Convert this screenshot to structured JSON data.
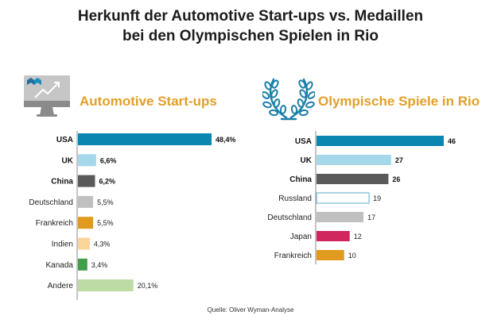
{
  "title_line1": "Herkunft der Automotive Start-ups vs. Medaillen",
  "title_line2": "bei den Olympischen Spielen in Rio",
  "source": "Quelle: Oliver Wyman-Analyse",
  "icons": {
    "left": "monitor-trend-icon",
    "right": "laurel-wreath-icon"
  },
  "colors": {
    "heading": "#e0a028",
    "USA": "#0a86b0",
    "UK": "#a6d8eb",
    "China": "#5a5a5a",
    "Russland_outline": "#7ab8d4",
    "Deutschland": "#c0c0c0",
    "Frankreich": "#e09a20",
    "Indien": "#fbd59a",
    "Kanada": "#3f9e48",
    "Andere": "#bcdca4",
    "Japan": "#d0285e"
  },
  "chart_data": [
    {
      "type": "bar",
      "orientation": "horizontal",
      "title": "Automotive Start-ups",
      "unit": "%",
      "categories": [
        "USA",
        "UK",
        "China",
        "Deutschland",
        "Frankreich",
        "Indien",
        "Kanada",
        "Andere"
      ],
      "values": [
        48.4,
        6.6,
        6.2,
        5.5,
        5.5,
        4.3,
        3.4,
        20.1
      ],
      "value_labels": [
        "48,4%",
        "6,6%",
        "6,2%",
        "5,5%",
        "5,5%",
        "4,3%",
        "3,4%",
        "20,1%"
      ],
      "bold": [
        true,
        true,
        true,
        false,
        false,
        false,
        false,
        false
      ],
      "colors": [
        "#0a86b0",
        "#a6d8eb",
        "#5a5a5a",
        "#c0c0c0",
        "#e09a20",
        "#fbd59a",
        "#3f9e48",
        "#bcdca4"
      ],
      "outline": [
        false,
        false,
        false,
        false,
        false,
        false,
        false,
        false
      ],
      "xlim": [
        0,
        48.4
      ],
      "grid": false,
      "legend": "none"
    },
    {
      "type": "bar",
      "orientation": "horizontal",
      "title": "Olympische Spiele in Rio",
      "unit": "Medaillen",
      "categories": [
        "USA",
        "UK",
        "China",
        "Russland",
        "Deutschland",
        "Japan",
        "Frankreich"
      ],
      "values": [
        46,
        27,
        26,
        19,
        17,
        12,
        10
      ],
      "value_labels": [
        "46",
        "27",
        "26",
        "19",
        "17",
        "12",
        "10"
      ],
      "bold": [
        true,
        true,
        true,
        false,
        false,
        false,
        false
      ],
      "colors": [
        "#0a86b0",
        "#a6d8eb",
        "#5a5a5a",
        "#ffffff",
        "#c0c0c0",
        "#d0285e",
        "#e09a20"
      ],
      "outline": [
        false,
        false,
        false,
        true,
        false,
        false,
        false
      ],
      "xlim": [
        0,
        46
      ],
      "grid": false,
      "legend": "none"
    }
  ]
}
